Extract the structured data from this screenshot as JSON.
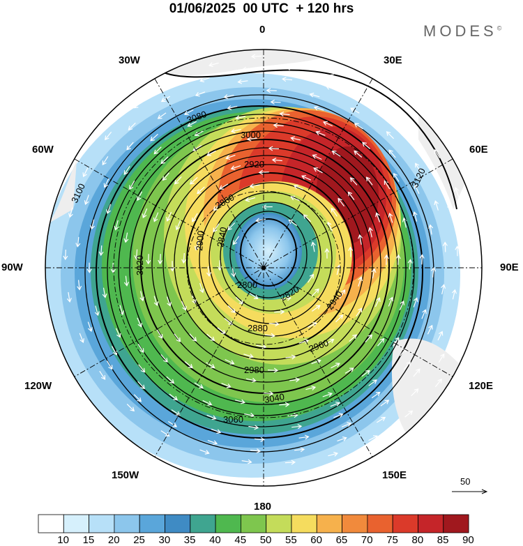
{
  "title": "01/06/2025  00 UTC  + 120 hrs",
  "brand": "MODES",
  "brand_mark": "©",
  "longitude_labels": {
    "top": "0",
    "bottom": "180",
    "left": "90W",
    "right": "90E",
    "nw1": "30W",
    "nw2": "60W",
    "ne1": "30E",
    "ne2": "60E",
    "sw1": "120W",
    "sw2": "150W",
    "se1": "120E",
    "se2": "150E"
  },
  "reference_vector_label": "50",
  "contour_labels": [
    "2800",
    "2820",
    "2840",
    "2860",
    "2880",
    "2900",
    "2920",
    "2940",
    "2960",
    "2980",
    "3000",
    "3020",
    "3040",
    "3060",
    "3080",
    "3100",
    "3120"
  ],
  "colorbar": {
    "levels": [
      "10",
      "15",
      "20",
      "25",
      "30",
      "35",
      "40",
      "45",
      "50",
      "55",
      "60",
      "65",
      "70",
      "75",
      "80",
      "85",
      "90"
    ],
    "colors": [
      "#ffffff",
      "#d6f0fc",
      "#b7e0f8",
      "#8cc6ec",
      "#5aa6da",
      "#3f8bc4",
      "#3fa590",
      "#4fb84f",
      "#7ec64e",
      "#c4dc5a",
      "#f5dc5e",
      "#f6b14c",
      "#f18a3c",
      "#e9622f",
      "#db3a2a",
      "#c52529",
      "#a0181e"
    ]
  },
  "colors": {
    "land": "#eeeeee",
    "contour": "#000000",
    "vector": "#ffffff"
  }
}
